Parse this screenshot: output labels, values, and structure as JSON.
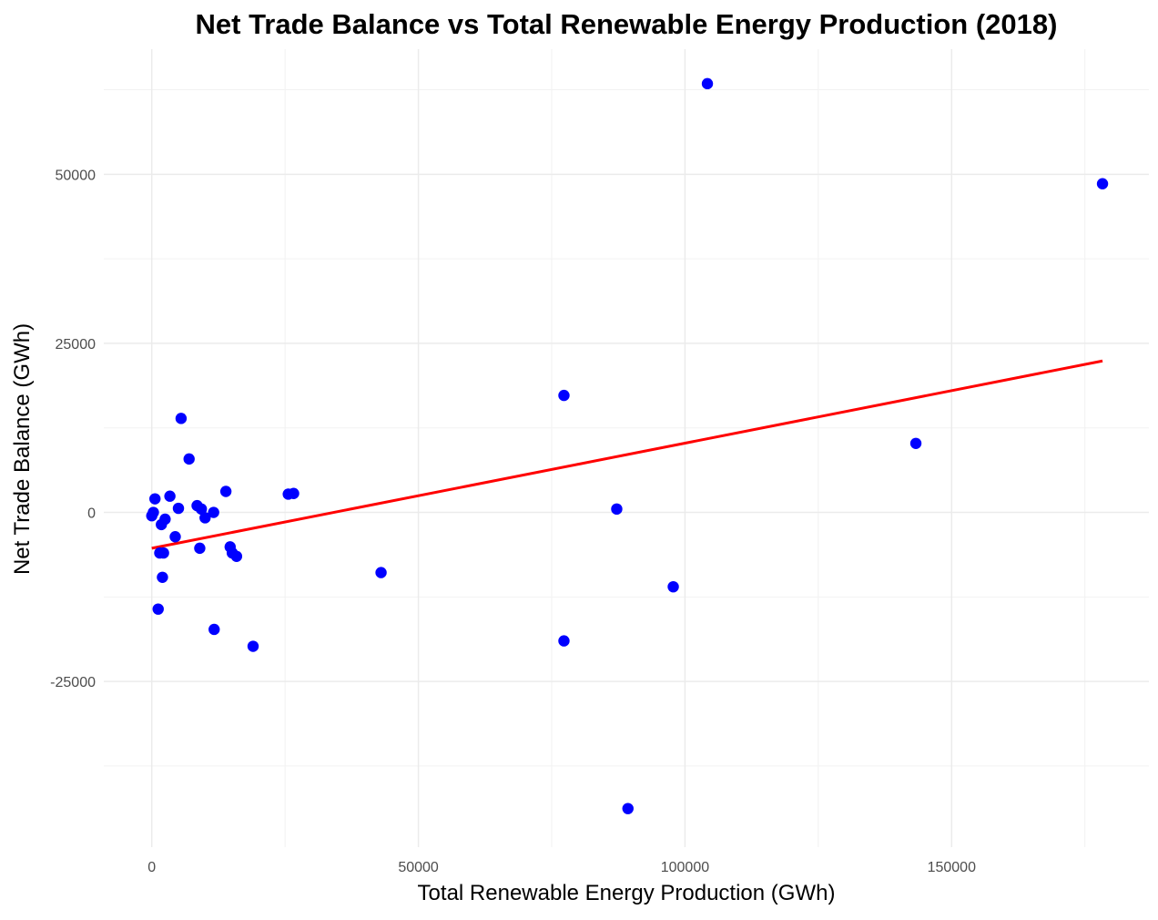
{
  "chart_data": {
    "type": "scatter",
    "title": "Net Trade Balance vs Total Renewable Energy Production (2018)",
    "xlabel": "Total Renewable Energy Production (GWh)",
    "ylabel": "Net Trade Balance (GWh)",
    "xlim": [
      -9000,
      187000
    ],
    "ylim": [
      -49500,
      68500
    ],
    "x_ticks": [
      0,
      50000,
      100000,
      150000
    ],
    "y_ticks": [
      -25000,
      0,
      25000,
      50000
    ],
    "x_minor_ticks": [
      25000,
      75000,
      125000,
      175000
    ],
    "y_minor_ticks": [
      -37500,
      -12500,
      12500,
      37500,
      62500
    ],
    "grid": true,
    "point_color": "#0000ff",
    "trend_color": "#ff0000",
    "points": [
      {
        "x": 0,
        "y": -500
      },
      {
        "x": 300,
        "y": 0
      },
      {
        "x": 600,
        "y": 2000
      },
      {
        "x": 1200,
        "y": -14300
      },
      {
        "x": 1500,
        "y": -6000
      },
      {
        "x": 1800,
        "y": -1800
      },
      {
        "x": 2000,
        "y": -9600
      },
      {
        "x": 2200,
        "y": -6000
      },
      {
        "x": 2500,
        "y": -1000
      },
      {
        "x": 3400,
        "y": 2400
      },
      {
        "x": 4400,
        "y": -3600
      },
      {
        "x": 5000,
        "y": 600
      },
      {
        "x": 5500,
        "y": 13900
      },
      {
        "x": 7000,
        "y": 7900
      },
      {
        "x": 8500,
        "y": 1000
      },
      {
        "x": 9000,
        "y": -5300
      },
      {
        "x": 9300,
        "y": 500
      },
      {
        "x": 10000,
        "y": -800
      },
      {
        "x": 11600,
        "y": 0
      },
      {
        "x": 11700,
        "y": -17300
      },
      {
        "x": 13900,
        "y": 3100
      },
      {
        "x": 14700,
        "y": -5100
      },
      {
        "x": 15100,
        "y": -6000
      },
      {
        "x": 15900,
        "y": -6500
      },
      {
        "x": 19000,
        "y": -19800
      },
      {
        "x": 25600,
        "y": 2700
      },
      {
        "x": 26600,
        "y": 2800
      },
      {
        "x": 43000,
        "y": -8900
      },
      {
        "x": 77300,
        "y": 17300
      },
      {
        "x": 77300,
        "y": -19000
      },
      {
        "x": 87200,
        "y": 500
      },
      {
        "x": 89300,
        "y": -43800
      },
      {
        "x": 97800,
        "y": -11000
      },
      {
        "x": 104200,
        "y": 63400
      },
      {
        "x": 143300,
        "y": 10200
      },
      {
        "x": 178300,
        "y": 48600
      }
    ],
    "trend_line": {
      "x": [
        0,
        178300
      ],
      "y": [
        -5300,
        22400
      ]
    }
  }
}
